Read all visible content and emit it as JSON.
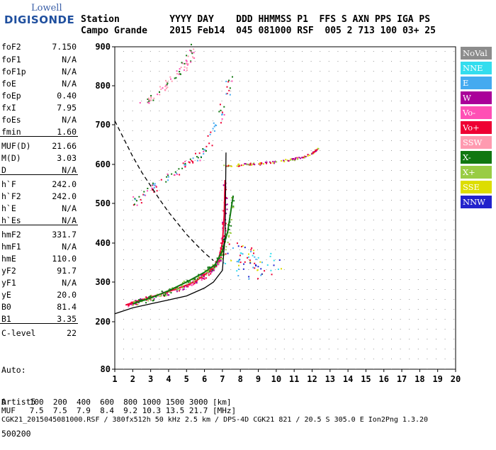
{
  "logo": {
    "line1": "Lowell",
    "line2": "DIGISONDE"
  },
  "header": {
    "row1": "Station         YYYY DAY    DDD HHMMSS P1  FFS S AXN PPS IGA PS",
    "row2": "Campo Grande    2015 Feb14  045 081000 RSF  005 2 713 100 03+ 25"
  },
  "params": [
    {
      "label": "foF2",
      "value": "7.150"
    },
    {
      "label": "foF1",
      "value": "N/A"
    },
    {
      "label": "foF1p",
      "value": "N/A"
    },
    {
      "label": "foE",
      "value": "N/A"
    },
    {
      "label": "foEp",
      "value": "0.40"
    },
    {
      "label": "fxI",
      "value": "7.95"
    },
    {
      "label": "foEs",
      "value": "N/A"
    },
    {
      "label": "fmin",
      "value": "1.60"
    },
    {
      "label": "MUF(D)",
      "value": "21.66"
    },
    {
      "label": "M(D)",
      "value": "3.03"
    },
    {
      "label": "D",
      "value": "N/A"
    },
    {
      "label": "h`F",
      "value": "242.0"
    },
    {
      "label": "h`F2",
      "value": "242.0"
    },
    {
      "label": "h`E",
      "value": "N/A"
    },
    {
      "label": "h`Es",
      "value": "N/A"
    },
    {
      "label": "hmF2",
      "value": "331.7"
    },
    {
      "label": "hmF1",
      "value": "N/A"
    },
    {
      "label": "hmE",
      "value": "110.0"
    },
    {
      "label": "yF2",
      "value": "91.7"
    },
    {
      "label": "yF1",
      "value": "N/A"
    },
    {
      "label": "yE",
      "value": "20.0"
    },
    {
      "label": "B0",
      "value": "81.4"
    },
    {
      "label": "B1",
      "value": "3.35"
    },
    {
      "label": "C-level",
      "value": "22"
    }
  ],
  "auto": {
    "line1": "Auto:",
    "line2": "Artist5",
    "line3": "500200"
  },
  "legend": [
    {
      "label": "NoVal",
      "color": "#8c8c8c"
    },
    {
      "label": "NNE",
      "color": "#33ddee"
    },
    {
      "label": "E",
      "color": "#44aaf0"
    },
    {
      "label": "W",
      "color": "#aa0099"
    },
    {
      "label": "Vo-",
      "color": "#ff4fb5"
    },
    {
      "label": "Vo+",
      "color": "#ee0033"
    },
    {
      "label": "SSW",
      "color": "#ff9ab0"
    },
    {
      "label": "X-",
      "color": "#117711"
    },
    {
      "label": "X+",
      "color": "#99cc44"
    },
    {
      "label": "SSE",
      "color": "#dddd00"
    },
    {
      "label": "NNW",
      "color": "#2222cc"
    }
  ],
  "footer": {
    "row1": "D     100  200  400  600  800 1000 1500 3000 [km]",
    "row2": "MUF   7.5  7.5  7.9  8.4  9.2 10.3 13.5 21.7 [MHz]",
    "row3": "CGK21_2015045081000.RSF / 380fx512h 50 kHz 2.5 km / DPS-4D CGK21 821 / 20.5 S 305.0 E Ion2Png 1.3.20"
  },
  "chart_data": {
    "type": "scatter",
    "xlim": [
      1,
      20
    ],
    "ylim": [
      80,
      900
    ],
    "x_ticks": [
      "1",
      "2",
      "3",
      "4",
      "5",
      "6",
      "7",
      "8",
      "9",
      "10",
      "11",
      "12",
      "13",
      "14",
      "15",
      "16",
      "17",
      "18",
      "19",
      "20"
    ],
    "y_ticks": [
      "80",
      "200",
      "300",
      "400",
      "500",
      "600",
      "700",
      "800",
      "900"
    ],
    "grid": true,
    "series": [
      {
        "name": "O-trace",
        "x": [
          1.6,
          2,
          3,
          4,
          5,
          5.5,
          6,
          6.5,
          6.8,
          7,
          7.1,
          7.15
        ],
        "y": [
          242,
          248,
          262,
          276,
          292,
          302,
          318,
          338,
          360,
          400,
          470,
          560
        ]
      },
      {
        "name": "X-trace",
        "x": [
          2.0,
          3,
          4,
          5,
          6,
          6.6,
          7.0,
          7.3,
          7.6
        ],
        "y": [
          245,
          260,
          278,
          300,
          325,
          345,
          380,
          430,
          520
        ]
      },
      {
        "name": "2F-trace",
        "x": [
          2.0,
          3,
          4,
          5,
          6,
          6.8,
          7.4
        ],
        "y": [
          500,
          540,
          570,
          600,
          640,
          720,
          820
        ]
      },
      {
        "name": "3F-trace",
        "x": [
          2.5,
          3.5,
          4.5,
          5.0,
          5.4
        ],
        "y": [
          750,
          790,
          830,
          860,
          900
        ]
      },
      {
        "name": "Spread-F",
        "x": [
          7.5,
          8,
          8.5,
          9,
          9.5
        ],
        "y": [
          380,
          360,
          350,
          340,
          345
        ]
      },
      {
        "name": "Oblique",
        "x": [
          7.0,
          8,
          9,
          10,
          11,
          11.8,
          12.3
        ],
        "y": [
          598,
          600,
          603,
          608,
          615,
          625,
          640
        ]
      },
      {
        "name": "Profile",
        "x": [
          1.0,
          2,
          3,
          4,
          5,
          6,
          6.5,
          7.0,
          7.15,
          7.2
        ],
        "y": [
          220,
          235,
          245,
          255,
          265,
          285,
          300,
          330,
          420,
          630
        ]
      },
      {
        "name": "MUF-curve",
        "x": [
          1.0,
          1.5,
          2,
          2.5,
          3,
          3.5,
          4,
          4.5,
          5,
          5.5,
          6,
          6.5
        ],
        "y": [
          710,
          665,
          620,
          580,
          545,
          510,
          478,
          450,
          422,
          398,
          375,
          355
        ]
      }
    ]
  }
}
